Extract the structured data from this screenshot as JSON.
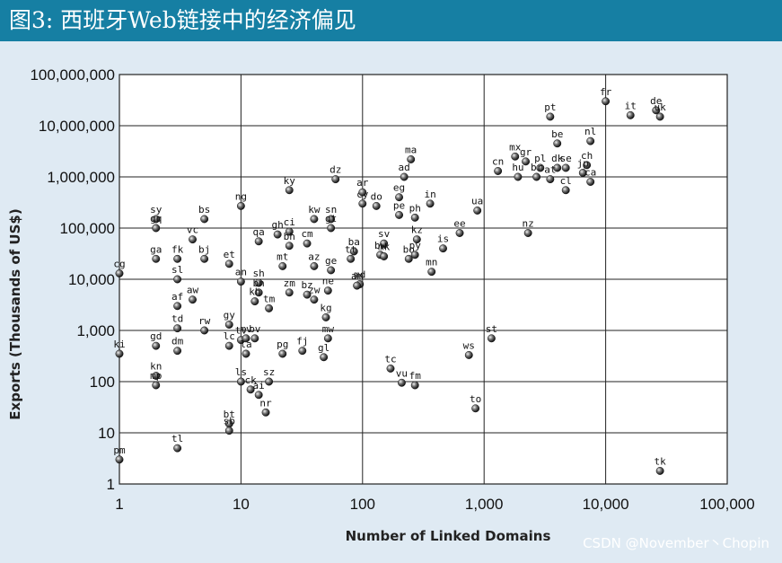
{
  "header": {
    "title": "图3: 西班牙Web链接中的经济偏见"
  },
  "watermark": "CSDN @November丶Chopin",
  "chart_data": {
    "type": "scatter",
    "xlabel": "Number of Linked Domains",
    "ylabel": "Exports (Thousands of US$)",
    "xscale": "log",
    "yscale": "log",
    "xlim": [
      1,
      100000
    ],
    "ylim": [
      1,
      100000000
    ],
    "grid": true,
    "xticks": [
      1,
      10,
      100,
      1000,
      10000,
      100000
    ],
    "xtick_labels": [
      "1",
      "10",
      "100",
      "1,000",
      "10,000",
      "100,000"
    ],
    "yticks": [
      1,
      10,
      100,
      1000,
      10000,
      100000,
      1000000,
      10000000,
      100000000
    ],
    "ytick_labels": [
      "1",
      "10",
      "100",
      "1,000",
      "10,000",
      "100,000",
      "1,000,000",
      "10,000,000",
      "100,000,000"
    ],
    "points": [
      {
        "label": "fr",
        "x": 10000,
        "y": 30000000
      },
      {
        "label": "it",
        "x": 16000,
        "y": 16000000
      },
      {
        "label": "de",
        "x": 26000,
        "y": 20000000
      },
      {
        "label": "uk",
        "x": 28000,
        "y": 15000000
      },
      {
        "label": "pt",
        "x": 3500,
        "y": 15000000
      },
      {
        "label": "be",
        "x": 4000,
        "y": 4500000
      },
      {
        "label": "nl",
        "x": 7500,
        "y": 5000000
      },
      {
        "label": "ch",
        "x": 7000,
        "y": 1700000
      },
      {
        "label": "jp",
        "x": 6500,
        "y": 1200000
      },
      {
        "label": "ca",
        "x": 7500,
        "y": 800000
      },
      {
        "label": "se",
        "x": 4700,
        "y": 1500000
      },
      {
        "label": "cl",
        "x": 4700,
        "y": 550000
      },
      {
        "label": "dk",
        "x": 4000,
        "y": 1500000
      },
      {
        "label": "pl",
        "x": 2900,
        "y": 1500000
      },
      {
        "label": "br",
        "x": 2700,
        "y": 1000000
      },
      {
        "label": "at",
        "x": 3500,
        "y": 900000
      },
      {
        "label": "mx",
        "x": 1800,
        "y": 2500000
      },
      {
        "label": "gr",
        "x": 2200,
        "y": 2000000
      },
      {
        "label": "hu",
        "x": 1900,
        "y": 1000000
      },
      {
        "label": "ma",
        "x": 250,
        "y": 2200000
      },
      {
        "label": "ad",
        "x": 220,
        "y": 1000000
      },
      {
        "label": "cn",
        "x": 1300,
        "y": 1300000
      },
      {
        "label": "nz",
        "x": 2300,
        "y": 80000
      },
      {
        "label": "dz",
        "x": 60,
        "y": 900000
      },
      {
        "label": "ky",
        "x": 25,
        "y": 550000
      },
      {
        "label": "ng",
        "x": 10,
        "y": 270000
      },
      {
        "label": "bs",
        "x": 5,
        "y": 150000
      },
      {
        "label": "sy",
        "x": 2,
        "y": 150000
      },
      {
        "label": "gq",
        "x": 2,
        "y": 100000
      },
      {
        "label": "vc",
        "x": 4,
        "y": 60000
      },
      {
        "label": "fk",
        "x": 3,
        "y": 25000
      },
      {
        "label": "bj",
        "x": 5,
        "y": 25000
      },
      {
        "label": "ga",
        "x": 2,
        "y": 25000
      },
      {
        "label": "sl",
        "x": 3,
        "y": 10000
      },
      {
        "label": "cg",
        "x": 1,
        "y": 13000
      },
      {
        "label": "af",
        "x": 3,
        "y": 3000
      },
      {
        "label": "aw",
        "x": 4,
        "y": 4000
      },
      {
        "label": "mn",
        "x": 370,
        "y": 14000
      },
      {
        "label": "td",
        "x": 3,
        "y": 1100
      },
      {
        "label": "rw",
        "x": 5,
        "y": 1000
      },
      {
        "label": "gy",
        "x": 8,
        "y": 1300
      },
      {
        "label": "ki",
        "x": 1,
        "y": 350
      },
      {
        "label": "gd",
        "x": 2,
        "y": 500
      },
      {
        "label": "dm",
        "x": 3,
        "y": 400
      },
      {
        "label": "kn",
        "x": 2,
        "y": 130
      },
      {
        "label": "mp",
        "x": 2,
        "y": 85
      },
      {
        "label": "ls",
        "x": 10,
        "y": 100
      },
      {
        "label": "ck",
        "x": 12,
        "y": 70
      },
      {
        "label": "sz",
        "x": 17,
        "y": 100
      },
      {
        "label": "ai",
        "x": 14,
        "y": 55
      },
      {
        "label": "nr",
        "x": 16,
        "y": 25
      },
      {
        "label": "bt",
        "x": 8,
        "y": 15
      },
      {
        "label": "sb",
        "x": 8,
        "y": 11
      },
      {
        "label": "tl",
        "x": 3,
        "y": 5
      },
      {
        "label": "pm",
        "x": 1,
        "y": 3
      },
      {
        "label": "pg",
        "x": 22,
        "y": 350
      },
      {
        "label": "fj",
        "x": 32,
        "y": 400
      },
      {
        "label": "gl",
        "x": 48,
        "y": 300
      },
      {
        "label": "mw",
        "x": 52,
        "y": 700
      },
      {
        "label": "kg",
        "x": 50,
        "y": 1800
      },
      {
        "label": "ne",
        "x": 52,
        "y": 6000
      },
      {
        "label": "tc",
        "x": 170,
        "y": 180
      },
      {
        "label": "vu",
        "x": 210,
        "y": 95
      },
      {
        "label": "fm",
        "x": 270,
        "y": 85
      },
      {
        "label": "ws",
        "x": 750,
        "y": 330
      },
      {
        "label": "st",
        "x": 1150,
        "y": 700
      },
      {
        "label": "to",
        "x": 850,
        "y": 30
      },
      {
        "label": "tk",
        "x": 28000,
        "y": 1.8
      },
      {
        "label": "sv",
        "x": 150,
        "y": 50000
      },
      {
        "label": "bw",
        "x": 140,
        "y": 30000
      },
      {
        "label": "bo",
        "x": 240,
        "y": 25000
      },
      {
        "label": "py",
        "x": 270,
        "y": 30000
      },
      {
        "label": "kz",
        "x": 280,
        "y": 60000
      },
      {
        "label": "is",
        "x": 460,
        "y": 40000
      },
      {
        "label": "ee",
        "x": 630,
        "y": 80000
      },
      {
        "label": "eg",
        "x": 200,
        "y": 400000
      },
      {
        "label": "do",
        "x": 130,
        "y": 270000
      },
      {
        "label": "pe",
        "x": 200,
        "y": 180000
      },
      {
        "label": "ph",
        "x": 270,
        "y": 160000
      },
      {
        "label": "in",
        "x": 360,
        "y": 300000
      },
      {
        "label": "ua",
        "x": 880,
        "y": 220000
      },
      {
        "label": "cy",
        "x": 100,
        "y": 300000
      },
      {
        "label": "ar",
        "x": 100,
        "y": 500000
      },
      {
        "label": "md",
        "x": 95,
        "y": 8000
      },
      {
        "label": "am",
        "x": 90,
        "y": 7500
      },
      {
        "label": "ba",
        "x": 85,
        "y": 35000
      },
      {
        "label": "tt",
        "x": 80,
        "y": 25000
      },
      {
        "label": "mk",
        "x": 150,
        "y": 28000
      },
      {
        "label": "sn",
        "x": 55,
        "y": 150000
      },
      {
        "label": "kw",
        "x": 40,
        "y": 150000
      },
      {
        "label": "gt",
        "x": 55,
        "y": 100000
      },
      {
        "label": "ci",
        "x": 25,
        "y": 85000
      },
      {
        "label": "gh",
        "x": 20,
        "y": 75000
      },
      {
        "label": "cm",
        "x": 35,
        "y": 50000
      },
      {
        "label": "qa",
        "x": 14,
        "y": 55000
      },
      {
        "label": "bh",
        "x": 25,
        "y": 45000
      },
      {
        "label": "et",
        "x": 8,
        "y": 20000
      },
      {
        "label": "an",
        "x": 10,
        "y": 9000
      },
      {
        "label": "sh",
        "x": 14,
        "y": 8500
      },
      {
        "label": "bn",
        "x": 14,
        "y": 5500
      },
      {
        "label": "kh",
        "x": 13,
        "y": 3700
      },
      {
        "label": "tm",
        "x": 17,
        "y": 2700
      },
      {
        "label": "bv",
        "x": 13,
        "y": 700
      },
      {
        "label": "lc",
        "x": 8,
        "y": 500
      },
      {
        "label": "tv",
        "x": 10,
        "y": 650
      },
      {
        "label": "la",
        "x": 11,
        "y": 350
      },
      {
        "label": "mv",
        "x": 11,
        "y": 700
      },
      {
        "label": "zm",
        "x": 25,
        "y": 5500
      },
      {
        "label": "bz",
        "x": 35,
        "y": 5000
      },
      {
        "label": "zw",
        "x": 40,
        "y": 4000
      },
      {
        "label": "mt",
        "x": 22,
        "y": 18000
      },
      {
        "label": "ge",
        "x": 55,
        "y": 15000
      },
      {
        "label": "az",
        "x": 40,
        "y": 18000
      }
    ]
  }
}
